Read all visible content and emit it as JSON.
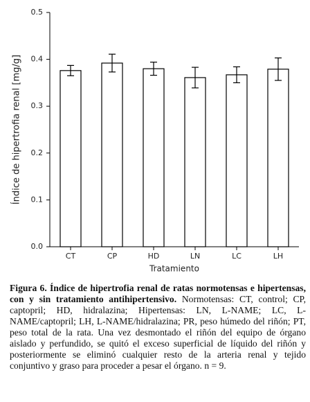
{
  "chart_data": {
    "type": "bar",
    "categories": [
      "CT",
      "CP",
      "HD",
      "LN",
      "LC",
      "LH"
    ],
    "series": [
      {
        "values": [
          0.376,
          0.392,
          0.38,
          0.361,
          0.367,
          0.379
        ],
        "errors": [
          0.011,
          0.019,
          0.014,
          0.022,
          0.017,
          0.024
        ],
        "color": "#ffffff"
      }
    ],
    "ylim": [
      0,
      0.5
    ],
    "yticks": [
      {
        "value": 0,
        "label": "0.0"
      },
      0.1,
      0.2,
      0.3,
      0.4,
      0.5
    ],
    "ylabel": "Índice de hipertrofia renal [mg/g]",
    "xlabel": "Tratamiento"
  },
  "caption": {
    "bold": "Figura 6. Índice de hipertrofia renal de ratas normotensas e hipertensas, con y sin tratamiento antihipertensivo.",
    "text": "Normotensas: CT, control; CP, captopril; HD, hidralazina; Hipertensas: LN, L-NAME; LC, L-NAME/captopril; LH, L-NAME/hidralazina; PR, peso húmedo del riñón; PT, peso total de la rata. Una vez desmontado el riñón del equipo de órgano aislado y perfundido, se quitó el exceso superficial de líquido del riñón y posteriormente se eliminó cualquier resto de la arteria renal y tejido conjuntivo y graso para proceder a pesar el órgano. n = 9."
  }
}
